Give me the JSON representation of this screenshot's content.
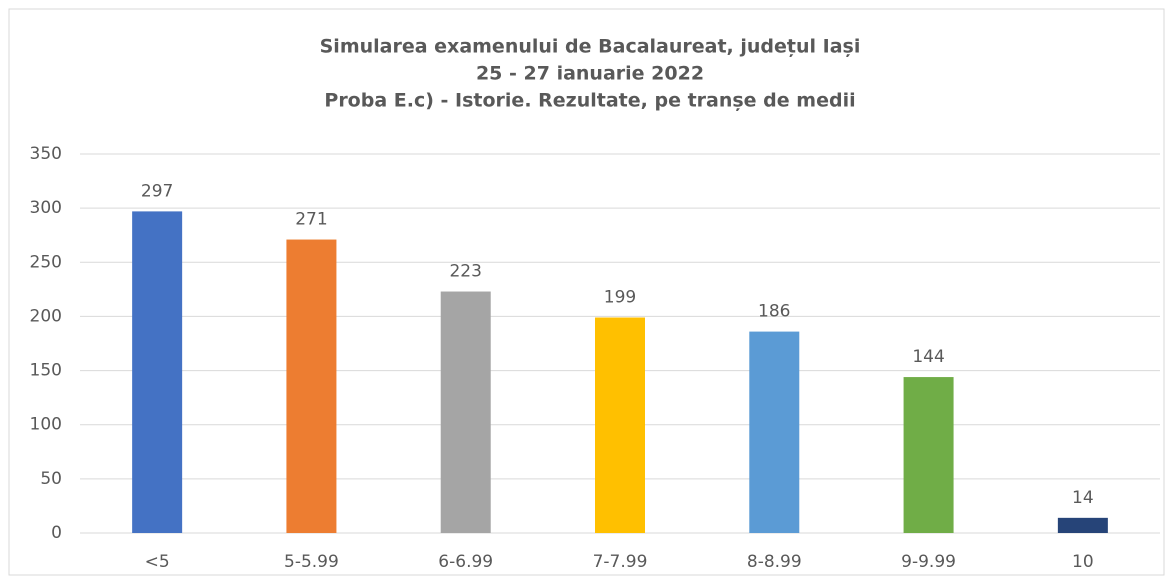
{
  "chart_data": {
    "type": "bar",
    "title": [
      "Simularea examenului de Bacalaureat, județul Iași",
      "25 - 27 ianuarie 2022",
      "Proba E.c) - Istorie. Rezultate, pe tranșe de medii"
    ],
    "categories": [
      "<5",
      "5-5.99",
      "6-6.99",
      "7-7.99",
      "8-8.99",
      "9-9.99",
      "10"
    ],
    "values": [
      297,
      271,
      223,
      199,
      186,
      144,
      14
    ],
    "colors": [
      "#4472c4",
      "#ed7d31",
      "#a5a5a5",
      "#ffc000",
      "#5b9bd5",
      "#70ad47",
      "#264478"
    ],
    "ylim": [
      0,
      350
    ],
    "yticks": [
      0,
      50,
      100,
      150,
      200,
      250,
      300,
      350
    ],
    "grid": true
  }
}
